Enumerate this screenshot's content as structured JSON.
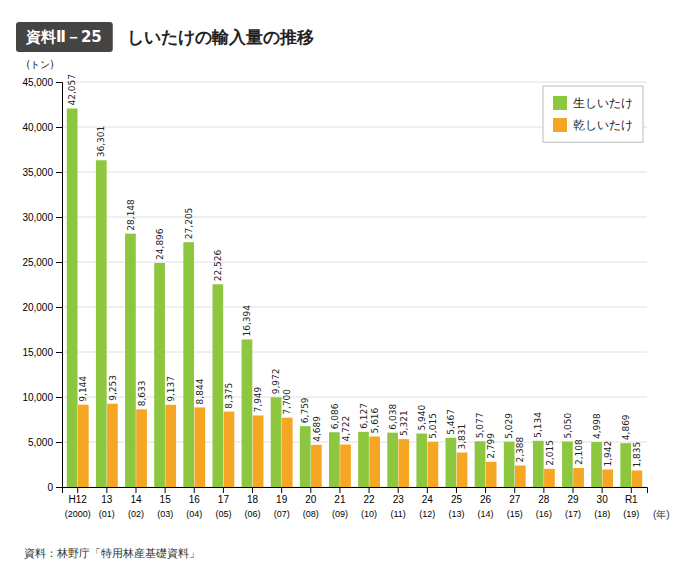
{
  "chart_data": {
    "type": "bar",
    "title": "しいたけの輸入量の推移",
    "annotations": [
      "資料Ⅱ－25",
      "資料：林野庁「特用林産基礎資料」"
    ],
    "ylabel": "(トン)",
    "xlabel": "(年)",
    "categories": [
      "H12",
      "13",
      "14",
      "15",
      "16",
      "17",
      "18",
      "19",
      "20",
      "21",
      "22",
      "23",
      "24",
      "25",
      "26",
      "27",
      "28",
      "29",
      "30",
      "R1"
    ],
    "subcategories": [
      "(2000)",
      "(01)",
      "(02)",
      "(03)",
      "(04)",
      "(05)",
      "(06)",
      "(07)",
      "(08)",
      "(09)",
      "(10)",
      "(11)",
      "(12)",
      "(13)",
      "(14)",
      "(15)",
      "(16)",
      "(17)",
      "(18)",
      "(19)"
    ],
    "series": [
      {
        "name": "生しいたけ",
        "color": "#8dc63f",
        "values": [
          42057,
          36301,
          28148,
          24896,
          27205,
          22526,
          16394,
          9972,
          6759,
          6086,
          6127,
          6038,
          5940,
          5467,
          5077,
          5029,
          5134,
          5050,
          4998,
          4869
        ],
        "value_labels": [
          "42,057",
          "36,301",
          "28,148",
          "24,896",
          "27,205",
          "22,526",
          "16,394",
          "9,972",
          "6,759",
          "6,086",
          "6,127",
          "6,038",
          "5,940",
          "5,467",
          "5,077",
          "5,029",
          "5,134",
          "5,050",
          "4,998",
          "4,869"
        ]
      },
      {
        "name": "乾しいたけ",
        "color": "#f5a623",
        "values": [
          9144,
          9253,
          8633,
          9137,
          8844,
          8375,
          7949,
          7700,
          4689,
          4722,
          5616,
          5321,
          5015,
          3831,
          2799,
          2388,
          2015,
          2108,
          1942,
          1835
        ],
        "value_labels": [
          "9,144",
          "9,253",
          "8,633",
          "9,137",
          "8,844",
          "8,375",
          "7,949",
          "7,700",
          "4,689",
          "4,722",
          "5,616",
          "5,321",
          "5,015",
          "3,831",
          "2,799",
          "2,388",
          "2,015",
          "2,108",
          "1,942",
          "1,835"
        ]
      }
    ],
    "ylim": [
      0,
      45000
    ],
    "yticks": [
      0,
      {
        "value": 5000,
        "label": "5,000"
      },
      {
        "value": 10000,
        "label": "10,000"
      },
      {
        "value": 15000,
        "label": "15,000"
      },
      {
        "value": 20000,
        "label": "20,000"
      },
      {
        "value": 25000,
        "label": "25,000"
      },
      {
        "value": 30000,
        "label": "30,000"
      },
      {
        "value": 35000,
        "label": "35,000"
      },
      {
        "value": 40000,
        "label": "40,000"
      },
      {
        "value": 45000,
        "label": "45,000"
      }
    ],
    "grid": true,
    "legend": "upper right",
    "data_labels": true
  }
}
